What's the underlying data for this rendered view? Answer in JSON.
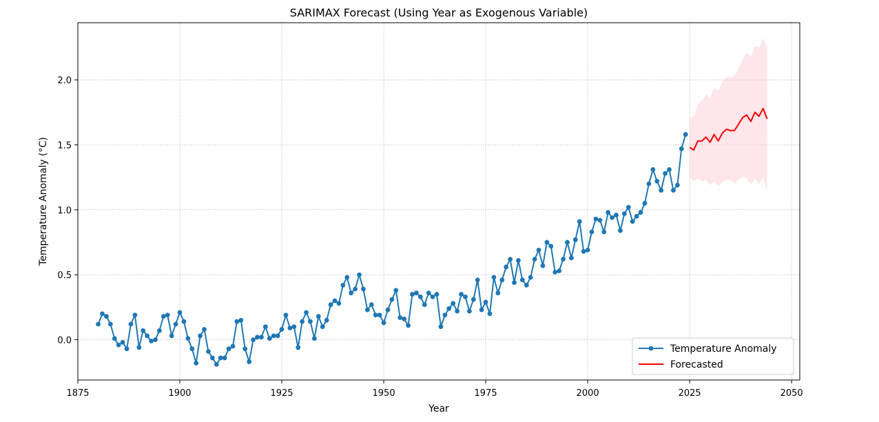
{
  "chart_data": {
    "type": "line",
    "title": "SARIMAX Forecast (Using Year as Exogenous Variable)",
    "xlabel": "Year",
    "ylabel": "Temperature Anomaly (°C)",
    "xlim": [
      1875,
      2052
    ],
    "ylim": [
      -0.31,
      2.44
    ],
    "xticks": [
      1875,
      1900,
      1925,
      1950,
      1975,
      2000,
      2025,
      2050
    ],
    "yticks": [
      0.0,
      0.5,
      1.0,
      1.5,
      2.0
    ],
    "grid": true,
    "legend_position": "bottom-right",
    "series": [
      {
        "name": "Temperature Anomaly",
        "color": "#1f77b4",
        "marker": "circle",
        "x": [
          1880,
          1881,
          1882,
          1883,
          1884,
          1885,
          1886,
          1887,
          1888,
          1889,
          1890,
          1891,
          1892,
          1893,
          1894,
          1895,
          1896,
          1897,
          1898,
          1899,
          1900,
          1901,
          1902,
          1903,
          1904,
          1905,
          1906,
          1907,
          1908,
          1909,
          1910,
          1911,
          1912,
          1913,
          1914,
          1915,
          1916,
          1917,
          1918,
          1919,
          1920,
          1921,
          1922,
          1923,
          1924,
          1925,
          1926,
          1927,
          1928,
          1929,
          1930,
          1931,
          1932,
          1933,
          1934,
          1935,
          1936,
          1937,
          1938,
          1939,
          1940,
          1941,
          1942,
          1943,
          1944,
          1945,
          1946,
          1947,
          1948,
          1949,
          1950,
          1951,
          1952,
          1953,
          1954,
          1955,
          1956,
          1957,
          1958,
          1959,
          1960,
          1961,
          1962,
          1963,
          1964,
          1965,
          1966,
          1967,
          1968,
          1969,
          1970,
          1971,
          1972,
          1973,
          1974,
          1975,
          1976,
          1977,
          1978,
          1979,
          1980,
          1981,
          1982,
          1983,
          1984,
          1985,
          1986,
          1987,
          1988,
          1989,
          1990,
          1991,
          1992,
          1993,
          1994,
          1995,
          1996,
          1997,
          1998,
          1999,
          2000,
          2001,
          2002,
          2003,
          2004,
          2005,
          2006,
          2007,
          2008,
          2009,
          2010,
          2011,
          2012,
          2013,
          2014,
          2015,
          2016,
          2017,
          2018,
          2019,
          2020,
          2021,
          2022,
          2023,
          2024
        ],
        "values": [
          0.12,
          0.2,
          0.18,
          0.12,
          0.01,
          -0.04,
          -0.02,
          -0.07,
          0.12,
          0.19,
          -0.06,
          0.07,
          0.03,
          -0.01,
          0.0,
          0.07,
          0.18,
          0.19,
          0.03,
          0.12,
          0.21,
          0.14,
          0.01,
          -0.07,
          -0.18,
          0.03,
          0.08,
          -0.09,
          -0.14,
          -0.19,
          -0.14,
          -0.14,
          -0.07,
          -0.05,
          0.14,
          0.15,
          -0.07,
          -0.17,
          0.0,
          0.02,
          0.02,
          0.1,
          0.01,
          0.03,
          0.03,
          0.08,
          0.19,
          0.09,
          0.1,
          -0.06,
          0.14,
          0.21,
          0.14,
          0.01,
          0.18,
          0.1,
          0.15,
          0.27,
          0.3,
          0.28,
          0.42,
          0.48,
          0.36,
          0.39,
          0.5,
          0.39,
          0.23,
          0.27,
          0.19,
          0.19,
          0.13,
          0.23,
          0.31,
          0.38,
          0.17,
          0.16,
          0.11,
          0.35,
          0.36,
          0.33,
          0.27,
          0.36,
          0.33,
          0.35,
          0.1,
          0.19,
          0.24,
          0.28,
          0.22,
          0.35,
          0.33,
          0.22,
          0.31,
          0.46,
          0.23,
          0.29,
          0.2,
          0.48,
          0.36,
          0.46,
          0.56,
          0.62,
          0.44,
          0.61,
          0.46,
          0.42,
          0.48,
          0.62,
          0.69,
          0.57,
          0.75,
          0.72,
          0.52,
          0.53,
          0.62,
          0.75,
          0.63,
          0.77,
          0.91,
          0.68,
          0.69,
          0.83,
          0.93,
          0.92,
          0.83,
          0.98,
          0.94,
          0.96,
          0.84,
          0.97,
          1.02,
          0.91,
          0.95,
          0.98,
          1.05,
          1.2,
          1.31,
          1.22,
          1.15,
          1.28,
          1.31,
          1.15,
          1.19,
          1.47,
          1.58
        ]
      },
      {
        "name": "Forecasted",
        "color": "#ff0000",
        "x": [
          2025,
          2026,
          2027,
          2028,
          2029,
          2030,
          2031,
          2032,
          2033,
          2034,
          2035,
          2036,
          2037,
          2038,
          2039,
          2040,
          2041,
          2042,
          2043,
          2044
        ],
        "values": [
          1.48,
          1.46,
          1.53,
          1.53,
          1.56,
          1.52,
          1.58,
          1.53,
          1.59,
          1.62,
          1.61,
          1.61,
          1.66,
          1.71,
          1.73,
          1.68,
          1.75,
          1.72,
          1.78,
          1.7
        ],
        "lower": [
          1.25,
          1.22,
          1.24,
          1.22,
          1.23,
          1.19,
          1.22,
          1.18,
          1.21,
          1.23,
          1.23,
          1.2,
          1.23,
          1.26,
          1.24,
          1.19,
          1.24,
          1.2,
          1.24,
          1.15
        ],
        "upper": [
          1.71,
          1.72,
          1.81,
          1.84,
          1.89,
          1.86,
          1.94,
          1.92,
          1.98,
          2.02,
          2.02,
          2.03,
          2.09,
          2.16,
          2.21,
          2.18,
          2.26,
          2.25,
          2.32,
          2.25
        ],
        "band_color": "#ffc0cb"
      }
    ]
  }
}
